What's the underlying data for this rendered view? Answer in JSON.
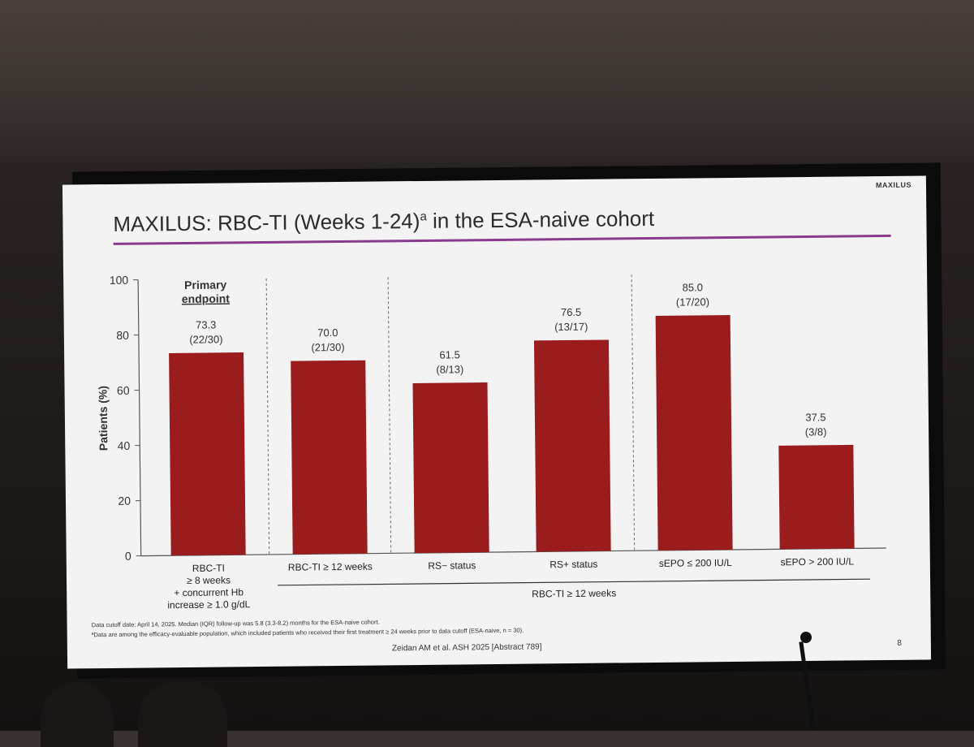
{
  "slide": {
    "brand": "MAXILUS",
    "title": "MAXILUS: RBC-TI (Weeks 1-24)",
    "title_superscript": "a",
    "title_suffix": " in the ESA-naive cohort",
    "accent_color": "#8a3a8f",
    "bar_color": "#9b1c1c",
    "footnote_1": "Data cutoff date: April 14, 2025. Median (IQR) follow-up was 5.8 (3.3-8.2) months for the ESA-naive cohort.",
    "footnote_2": "ªData are among the efficacy-evaluable population, which included patients who received their first treatment ≥ 24 weeks prior to data cutoff (ESA-naive, n = 30).",
    "citation": "Zeidan AM et al. ASH 2025 [Abstract 789]",
    "page_number": "8"
  },
  "chart_data": {
    "type": "bar",
    "title": "",
    "ylabel": "Patients (%)",
    "xlabel": "",
    "ylim": [
      0,
      100
    ],
    "yticks": [
      0,
      20,
      40,
      60,
      80,
      100
    ],
    "grid": false,
    "categories": [
      [
        "RBC-TI",
        "≥ 8 weeks",
        "+ concurrent Hb",
        "increase ≥ 1.0 g/dL"
      ],
      [
        "RBC-TI ≥ 12 weeks"
      ],
      [
        "RS− status"
      ],
      [
        "RS+ status"
      ],
      [
        "sEPO ≤ 200 IU/L"
      ],
      [
        "sEPO > 200 IU/L"
      ]
    ],
    "values": [
      73.3,
      70.0,
      61.5,
      76.5,
      85.0,
      37.5
    ],
    "value_labels": [
      "73.3",
      "70.0",
      "61.5",
      "76.5",
      "85.0",
      "37.5"
    ],
    "fraction_labels": [
      "(22/30)",
      "(21/30)",
      "(8/13)",
      "(13/17)",
      "(17/20)",
      "(3/8)"
    ],
    "annotations": {
      "primary_endpoint": [
        "Primary",
        "endpoint"
      ],
      "group_label": "RBC-TI ≥ 12 weeks"
    }
  }
}
